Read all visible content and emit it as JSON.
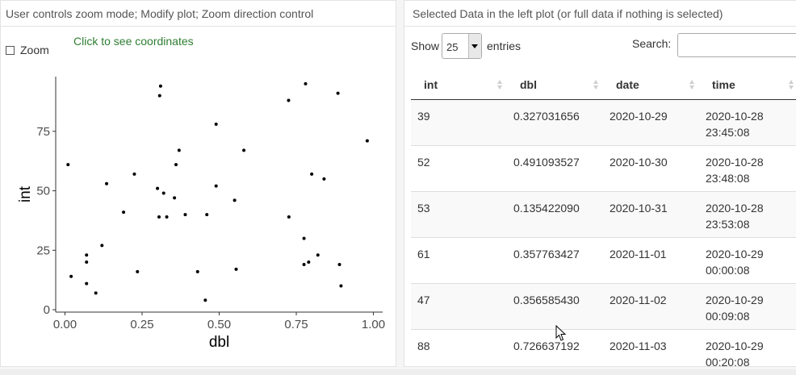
{
  "left_panel": {
    "title": "User controls zoom mode; Modify plot; Zoom direction control",
    "zoom_label": "Zoom",
    "coords_text": "Click to see coordinates"
  },
  "right_panel": {
    "title": "Selected Data in the left plot (or full data if nothing is selected)",
    "show_label": "Show",
    "entries_value": "25",
    "entries_label": "entries",
    "search_label": "Search:",
    "search_value": "",
    "columns": [
      "int",
      "dbl",
      "date",
      "time"
    ],
    "rows": [
      {
        "int": "39",
        "dbl": "0.327031656",
        "date": "2020-10-29",
        "time": "2020-10-28 23:45:08"
      },
      {
        "int": "52",
        "dbl": "0.491093527",
        "date": "2020-10-30",
        "time": "2020-10-28 23:48:08"
      },
      {
        "int": "53",
        "dbl": "0.135422090",
        "date": "2020-10-31",
        "time": "2020-10-28 23:53:08"
      },
      {
        "int": "61",
        "dbl": "0.357763427",
        "date": "2020-11-01",
        "time": "2020-10-29 00:00:08"
      },
      {
        "int": "47",
        "dbl": "0.356585430",
        "date": "2020-11-02",
        "time": "2020-10-29 00:09:08"
      },
      {
        "int": "88",
        "dbl": "0.726637192",
        "date": "2020-11-03",
        "time": "2020-10-29 00:20:08"
      }
    ]
  },
  "chart_data": {
    "type": "scatter",
    "title": "",
    "xlabel": "dbl",
    "ylabel": "int",
    "xlim": [
      -0.03,
      1.03
    ],
    "ylim": [
      -1,
      98
    ],
    "xticks": [
      "0.00",
      "0.25",
      "0.50",
      "0.75",
      "1.00"
    ],
    "xtick_values": [
      0,
      0.25,
      0.5,
      0.75,
      1.0
    ],
    "yticks": [
      "0",
      "25",
      "50",
      "75"
    ],
    "ytick_values": [
      0,
      25,
      50,
      75
    ],
    "grid": false,
    "point_color": "#000000",
    "points": [
      {
        "x": 0.01,
        "y": 61
      },
      {
        "x": 0.02,
        "y": 14
      },
      {
        "x": 0.07,
        "y": 23
      },
      {
        "x": 0.07,
        "y": 20
      },
      {
        "x": 0.07,
        "y": 11
      },
      {
        "x": 0.1,
        "y": 7
      },
      {
        "x": 0.12,
        "y": 27
      },
      {
        "x": 0.135,
        "y": 53
      },
      {
        "x": 0.19,
        "y": 41
      },
      {
        "x": 0.225,
        "y": 57
      },
      {
        "x": 0.235,
        "y": 16
      },
      {
        "x": 0.3,
        "y": 51
      },
      {
        "x": 0.305,
        "y": 39
      },
      {
        "x": 0.307,
        "y": 90
      },
      {
        "x": 0.31,
        "y": 94
      },
      {
        "x": 0.32,
        "y": 49
      },
      {
        "x": 0.33,
        "y": 39
      },
      {
        "x": 0.355,
        "y": 47
      },
      {
        "x": 0.36,
        "y": 61
      },
      {
        "x": 0.37,
        "y": 67
      },
      {
        "x": 0.39,
        "y": 40
      },
      {
        "x": 0.43,
        "y": 16
      },
      {
        "x": 0.455,
        "y": 4
      },
      {
        "x": 0.46,
        "y": 40
      },
      {
        "x": 0.49,
        "y": 52
      },
      {
        "x": 0.49,
        "y": 78
      },
      {
        "x": 0.55,
        "y": 46
      },
      {
        "x": 0.555,
        "y": 17
      },
      {
        "x": 0.58,
        "y": 67
      },
      {
        "x": 0.725,
        "y": 88
      },
      {
        "x": 0.726,
        "y": 39
      },
      {
        "x": 0.775,
        "y": 30
      },
      {
        "x": 0.775,
        "y": 19
      },
      {
        "x": 0.78,
        "y": 95
      },
      {
        "x": 0.79,
        "y": 20
      },
      {
        "x": 0.8,
        "y": 57
      },
      {
        "x": 0.82,
        "y": 23
      },
      {
        "x": 0.84,
        "y": 55
      },
      {
        "x": 0.885,
        "y": 91
      },
      {
        "x": 0.89,
        "y": 19
      },
      {
        "x": 0.895,
        "y": 10
      },
      {
        "x": 0.98,
        "y": 71
      }
    ]
  }
}
